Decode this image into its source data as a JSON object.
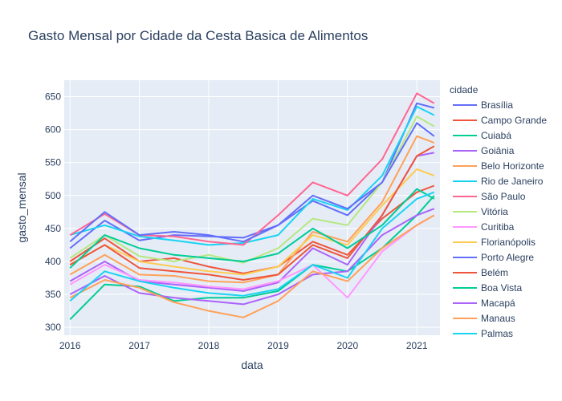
{
  "chart_data": {
    "type": "line",
    "title": "Gasto Mensal por Cidade da Cesta Basica de Alimentos",
    "xlabel": "data",
    "ylabel": "gasto_mensal",
    "x_ticks": [
      "2016",
      "2017",
      "2018",
      "2019",
      "2020",
      "2021"
    ],
    "y_ticks": [
      300,
      350,
      400,
      450,
      500,
      550,
      600,
      650
    ],
    "ylim": [
      288,
      675
    ],
    "xlim": [
      "2015-12",
      "2021-05"
    ],
    "grid": true,
    "legend_title": "cidade",
    "legend_position": "right",
    "series": [
      {
        "name": "Brasília",
        "color": "#636efa",
        "values": [
          {
            "date": "2016-01",
            "y": 420
          },
          {
            "date": "2016-07",
            "y": 462
          },
          {
            "date": "2017-01",
            "y": 432
          },
          {
            "date": "2017-07",
            "y": 440
          },
          {
            "date": "2018-01",
            "y": 438
          },
          {
            "date": "2018-07",
            "y": 436
          },
          {
            "date": "2019-01",
            "y": 455
          },
          {
            "date": "2019-07",
            "y": 492
          },
          {
            "date": "2020-01",
            "y": 470
          },
          {
            "date": "2020-07",
            "y": 520
          },
          {
            "date": "2021-01",
            "y": 640
          },
          {
            "date": "2021-04",
            "y": 633
          }
        ]
      },
      {
        "name": "Campo Grande",
        "color": "#ef553b",
        "values": [
          {
            "date": "2016-01",
            "y": 400
          },
          {
            "date": "2016-07",
            "y": 435
          },
          {
            "date": "2017-01",
            "y": 400
          },
          {
            "date": "2017-07",
            "y": 405
          },
          {
            "date": "2018-01",
            "y": 392
          },
          {
            "date": "2018-07",
            "y": 382
          },
          {
            "date": "2019-01",
            "y": 392
          },
          {
            "date": "2019-07",
            "y": 430
          },
          {
            "date": "2020-01",
            "y": 410
          },
          {
            "date": "2020-07",
            "y": 465
          },
          {
            "date": "2021-01",
            "y": 505
          },
          {
            "date": "2021-04",
            "y": 515
          }
        ]
      },
      {
        "name": "Cuiabá",
        "color": "#00cc96",
        "values": [
          {
            "date": "2016-01",
            "y": 312
          },
          {
            "date": "2016-07",
            "y": 365
          },
          {
            "date": "2017-01",
            "y": 362
          },
          {
            "date": "2017-07",
            "y": 340
          },
          {
            "date": "2018-01",
            "y": 345
          },
          {
            "date": "2018-07",
            "y": 345
          },
          {
            "date": "2019-01",
            "y": 355
          },
          {
            "date": "2019-07",
            "y": 395
          },
          {
            "date": "2020-01",
            "y": 385
          },
          {
            "date": "2020-07",
            "y": 420
          },
          {
            "date": "2021-01",
            "y": 470
          },
          {
            "date": "2021-04",
            "y": 500
          }
        ]
      },
      {
        "name": "Goiânia",
        "color": "#ab63fa",
        "values": [
          {
            "date": "2016-01",
            "y": 370
          },
          {
            "date": "2016-07",
            "y": 400
          },
          {
            "date": "2017-01",
            "y": 370
          },
          {
            "date": "2017-07",
            "y": 365
          },
          {
            "date": "2018-01",
            "y": 360
          },
          {
            "date": "2018-07",
            "y": 355
          },
          {
            "date": "2019-01",
            "y": 368
          },
          {
            "date": "2019-07",
            "y": 420
          },
          {
            "date": "2020-01",
            "y": 395
          },
          {
            "date": "2020-07",
            "y": 470
          },
          {
            "date": "2021-01",
            "y": 560
          },
          {
            "date": "2021-04",
            "y": 565
          }
        ]
      },
      {
        "name": "Belo Horizonte",
        "color": "#ffa15a",
        "values": [
          {
            "date": "2016-01",
            "y": 380
          },
          {
            "date": "2016-07",
            "y": 410
          },
          {
            "date": "2017-01",
            "y": 380
          },
          {
            "date": "2017-07",
            "y": 378
          },
          {
            "date": "2018-01",
            "y": 370
          },
          {
            "date": "2018-07",
            "y": 368
          },
          {
            "date": "2019-01",
            "y": 380
          },
          {
            "date": "2019-07",
            "y": 445
          },
          {
            "date": "2020-01",
            "y": 430
          },
          {
            "date": "2020-07",
            "y": 490
          },
          {
            "date": "2021-01",
            "y": 590
          },
          {
            "date": "2021-04",
            "y": 580
          }
        ]
      },
      {
        "name": "Rio de Janeiro",
        "color": "#19d3f3",
        "values": [
          {
            "date": "2016-01",
            "y": 440
          },
          {
            "date": "2016-07",
            "y": 455
          },
          {
            "date": "2017-01",
            "y": 438
          },
          {
            "date": "2017-07",
            "y": 432
          },
          {
            "date": "2018-01",
            "y": 425
          },
          {
            "date": "2018-07",
            "y": 428
          },
          {
            "date": "2019-01",
            "y": 440
          },
          {
            "date": "2019-07",
            "y": 495
          },
          {
            "date": "2020-01",
            "y": 478
          },
          {
            "date": "2020-07",
            "y": 530
          },
          {
            "date": "2021-01",
            "y": 635
          },
          {
            "date": "2021-04",
            "y": 622
          }
        ]
      },
      {
        "name": "São Paulo",
        "color": "#ff6692",
        "values": [
          {
            "date": "2016-01",
            "y": 440
          },
          {
            "date": "2016-07",
            "y": 472
          },
          {
            "date": "2017-01",
            "y": 440
          },
          {
            "date": "2017-07",
            "y": 438
          },
          {
            "date": "2018-01",
            "y": 430
          },
          {
            "date": "2018-07",
            "y": 425
          },
          {
            "date": "2019-01",
            "y": 470
          },
          {
            "date": "2019-07",
            "y": 520
          },
          {
            "date": "2020-01",
            "y": 500
          },
          {
            "date": "2020-07",
            "y": 555
          },
          {
            "date": "2021-01",
            "y": 655
          },
          {
            "date": "2021-04",
            "y": 640
          }
        ]
      },
      {
        "name": "Vitória",
        "color": "#b6e880",
        "values": [
          {
            "date": "2016-01",
            "y": 405
          },
          {
            "date": "2016-07",
            "y": 440
          },
          {
            "date": "2017-01",
            "y": 408
          },
          {
            "date": "2017-07",
            "y": 400
          },
          {
            "date": "2018-01",
            "y": 410
          },
          {
            "date": "2018-07",
            "y": 398
          },
          {
            "date": "2019-01",
            "y": 420
          },
          {
            "date": "2019-07",
            "y": 465
          },
          {
            "date": "2020-01",
            "y": 455
          },
          {
            "date": "2020-07",
            "y": 520
          },
          {
            "date": "2021-01",
            "y": 620
          },
          {
            "date": "2021-04",
            "y": 605
          }
        ]
      },
      {
        "name": "Curitiba",
        "color": "#ff97ff",
        "values": [
          {
            "date": "2016-01",
            "y": 365
          },
          {
            "date": "2016-07",
            "y": 395
          },
          {
            "date": "2017-01",
            "y": 372
          },
          {
            "date": "2017-07",
            "y": 368
          },
          {
            "date": "2018-01",
            "y": 362
          },
          {
            "date": "2018-07",
            "y": 358
          },
          {
            "date": "2019-01",
            "y": 370
          },
          {
            "date": "2019-07",
            "y": 395
          },
          {
            "date": "2020-01",
            "y": 345
          },
          {
            "date": "2020-07",
            "y": 415
          },
          {
            "date": "2021-01",
            "y": 455
          },
          {
            "date": "2021-04",
            "y": 470
          }
        ]
      },
      {
        "name": "Florianópolis",
        "color": "#fecb52",
        "values": [
          {
            "date": "2016-01",
            "y": 395
          },
          {
            "date": "2016-07",
            "y": 425
          },
          {
            "date": "2017-01",
            "y": 400
          },
          {
            "date": "2017-07",
            "y": 392
          },
          {
            "date": "2018-01",
            "y": 385
          },
          {
            "date": "2018-07",
            "y": 380
          },
          {
            "date": "2019-01",
            "y": 392
          },
          {
            "date": "2019-07",
            "y": 440
          },
          {
            "date": "2020-01",
            "y": 425
          },
          {
            "date": "2020-07",
            "y": 485
          },
          {
            "date": "2021-01",
            "y": 540
          },
          {
            "date": "2021-04",
            "y": 530
          }
        ]
      },
      {
        "name": "Porto Alegre",
        "color": "#636efa",
        "values": [
          {
            "date": "2016-01",
            "y": 430
          },
          {
            "date": "2016-07",
            "y": 475
          },
          {
            "date": "2017-01",
            "y": 440
          },
          {
            "date": "2017-07",
            "y": 445
          },
          {
            "date": "2018-01",
            "y": 440
          },
          {
            "date": "2018-07",
            "y": 430
          },
          {
            "date": "2019-01",
            "y": 455
          },
          {
            "date": "2019-07",
            "y": 500
          },
          {
            "date": "2020-01",
            "y": 480
          },
          {
            "date": "2020-07",
            "y": 520
          },
          {
            "date": "2021-01",
            "y": 610
          },
          {
            "date": "2021-04",
            "y": 590
          }
        ]
      },
      {
        "name": "Belém",
        "color": "#ef553b",
        "values": [
          {
            "date": "2016-01",
            "y": 395
          },
          {
            "date": "2016-07",
            "y": 425
          },
          {
            "date": "2017-01",
            "y": 390
          },
          {
            "date": "2017-07",
            "y": 385
          },
          {
            "date": "2018-01",
            "y": 380
          },
          {
            "date": "2018-07",
            "y": 372
          },
          {
            "date": "2019-01",
            "y": 380
          },
          {
            "date": "2019-07",
            "y": 425
          },
          {
            "date": "2020-01",
            "y": 405
          },
          {
            "date": "2020-07",
            "y": 470
          },
          {
            "date": "2021-01",
            "y": 560
          },
          {
            "date": "2021-04",
            "y": 575
          }
        ]
      },
      {
        "name": "Boa Vista",
        "color": "#00cc96",
        "values": [
          {
            "date": "2016-01",
            "y": 390
          },
          {
            "date": "2016-07",
            "y": 440
          },
          {
            "date": "2017-01",
            "y": 420
          },
          {
            "date": "2017-07",
            "y": 410
          },
          {
            "date": "2018-01",
            "y": 405
          },
          {
            "date": "2018-07",
            "y": 400
          },
          {
            "date": "2019-01",
            "y": 412
          },
          {
            "date": "2019-07",
            "y": 450
          },
          {
            "date": "2020-01",
            "y": 420
          },
          {
            "date": "2020-07",
            "y": 455
          },
          {
            "date": "2021-01",
            "y": 510
          },
          {
            "date": "2021-04",
            "y": 495
          }
        ]
      },
      {
        "name": "Macapá",
        "color": "#ab63fa",
        "values": [
          {
            "date": "2016-01",
            "y": 350
          },
          {
            "date": "2016-07",
            "y": 378
          },
          {
            "date": "2017-01",
            "y": 352
          },
          {
            "date": "2017-07",
            "y": 345
          },
          {
            "date": "2018-01",
            "y": 340
          },
          {
            "date": "2018-07",
            "y": 335
          },
          {
            "date": "2019-01",
            "y": 350
          },
          {
            "date": "2019-07",
            "y": 380
          },
          {
            "date": "2020-01",
            "y": 385
          },
          {
            "date": "2020-07",
            "y": 440
          },
          {
            "date": "2021-01",
            "y": 470
          },
          {
            "date": "2021-04",
            "y": 480
          }
        ]
      },
      {
        "name": "Manaus",
        "color": "#ffa15a",
        "values": [
          {
            "date": "2016-01",
            "y": 345
          },
          {
            "date": "2016-07",
            "y": 372
          },
          {
            "date": "2017-01",
            "y": 360
          },
          {
            "date": "2017-07",
            "y": 338
          },
          {
            "date": "2018-01",
            "y": 325
          },
          {
            "date": "2018-07",
            "y": 315
          },
          {
            "date": "2019-01",
            "y": 340
          },
          {
            "date": "2019-07",
            "y": 385
          },
          {
            "date": "2020-01",
            "y": 370
          },
          {
            "date": "2020-07",
            "y": 420
          },
          {
            "date": "2021-01",
            "y": 455
          },
          {
            "date": "2021-04",
            "y": 470
          }
        ]
      },
      {
        "name": "Palmas",
        "color": "#19d3f3",
        "values": [
          {
            "date": "2016-01",
            "y": 340
          },
          {
            "date": "2016-07",
            "y": 385
          },
          {
            "date": "2017-01",
            "y": 370
          },
          {
            "date": "2017-07",
            "y": 360
          },
          {
            "date": "2018-01",
            "y": 352
          },
          {
            "date": "2018-07",
            "y": 348
          },
          {
            "date": "2019-01",
            "y": 358
          },
          {
            "date": "2019-07",
            "y": 395
          },
          {
            "date": "2020-01",
            "y": 375
          },
          {
            "date": "2020-07",
            "y": 450
          },
          {
            "date": "2021-01",
            "y": 495
          },
          {
            "date": "2021-04",
            "y": 505
          }
        ]
      }
    ]
  }
}
